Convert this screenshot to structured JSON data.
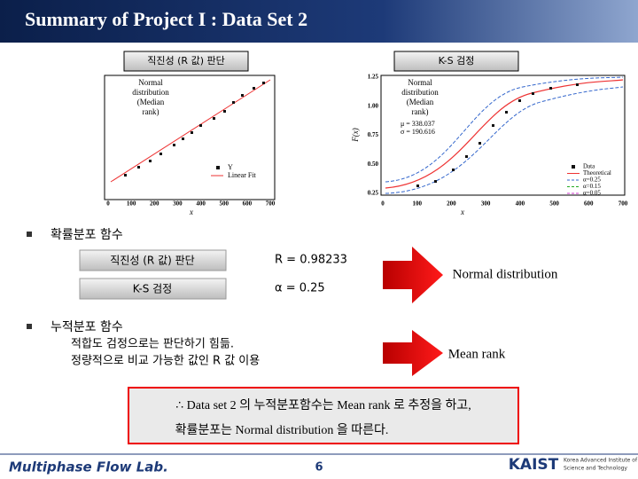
{
  "header": {
    "title": "Summary of Project I : Data Set 2"
  },
  "figures": [
    {
      "label": "직진성 (R 값) 판단",
      "overlay": [
        "Normal",
        "distribution",
        "(Median",
        "rank)"
      ],
      "x_label": "x",
      "x_ticks": [
        "0",
        "100",
        "200",
        "300",
        "400",
        "500",
        "600",
        "700"
      ],
      "legend": [
        "Y",
        "Linear Fit"
      ]
    },
    {
      "label": "K-S 검정",
      "overlay": [
        "Normal",
        "distribution",
        "(Median",
        "rank)"
      ],
      "x_label": "x",
      "y_label": "F(x)",
      "x_ticks": [
        "0",
        "100",
        "200",
        "300",
        "400",
        "500",
        "600",
        "700"
      ],
      "y_ticks": [
        "1.25",
        "1.00",
        "0.75",
        "0.50",
        "0.25"
      ],
      "stats": [
        "μ = 338.037",
        "σ = 190.616"
      ],
      "legend": [
        "Data",
        "Theoretical",
        "α=0.25",
        "α=0.15",
        "α=0.05"
      ]
    }
  ],
  "sections": [
    {
      "bullet": "확률분포 함수",
      "rows": [
        {
          "label": "직진성 (R 값) 판단",
          "value": "R = 0.98233"
        },
        {
          "label": "K-S 검정",
          "value": "α = 0.25"
        }
      ],
      "result": "Normal distribution"
    },
    {
      "bullet": "누적분포 함수",
      "lines": [
        "적합도 검정으로는 판단하기 힘듦.",
        "정량적으로 비교 가능한 값인 R 값 이용"
      ],
      "result": "Mean rank"
    }
  ],
  "conclusion": [
    "∴ Data set 2 의 누적분포함수는 Mean rank 로 추정을 하고,",
    "확률분포는 Normal distribution 을 따른다."
  ],
  "footer": {
    "lab": "Multiphase Flow Lab.",
    "page": "6",
    "logo": "KAIST",
    "institute": [
      "Korea Advanced Institute of",
      "Science and Technology"
    ]
  }
}
